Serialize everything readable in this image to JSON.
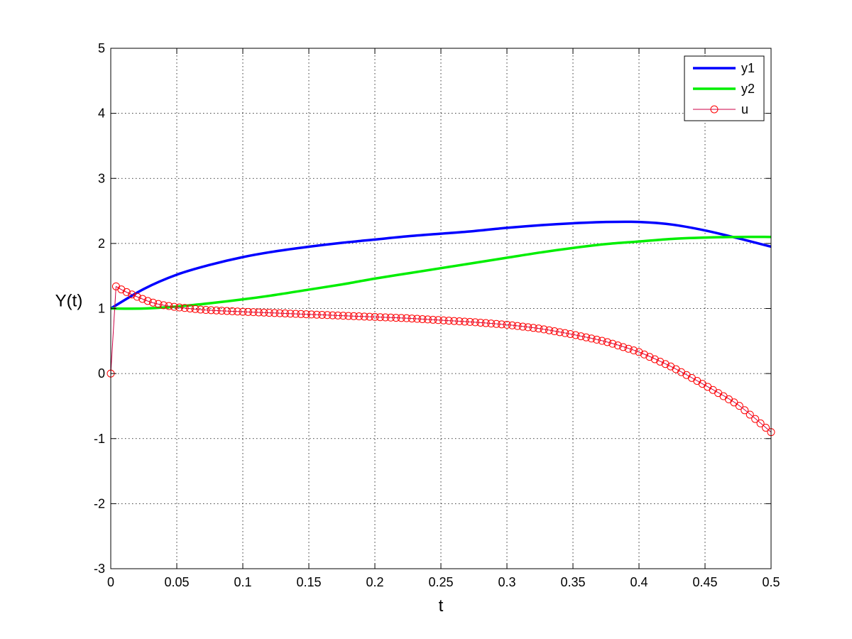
{
  "chart_data": {
    "type": "line",
    "title": "",
    "xlabel": "t",
    "ylabel": "Y(t)",
    "xlim": [
      0,
      0.5
    ],
    "ylim": [
      -3,
      5
    ],
    "xticks": [
      0,
      0.05,
      0.1,
      0.15,
      0.2,
      0.25,
      0.3,
      0.35,
      0.4,
      0.45,
      0.5
    ],
    "xtick_labels": [
      "0",
      "0.05",
      "0.1",
      "0.15",
      "0.2",
      "0.25",
      "0.3",
      "0.35",
      "0.4",
      "0.45",
      "0.5"
    ],
    "yticks": [
      -3,
      -2,
      -1,
      0,
      1,
      2,
      3,
      4,
      5
    ],
    "ytick_labels": [
      "-3",
      "-2",
      "-1",
      "0",
      "1",
      "2",
      "3",
      "4",
      "5"
    ],
    "grid": true,
    "legend_position": "top-right",
    "series": [
      {
        "name": "y1",
        "color": "#0000ff",
        "marker": "none",
        "x": [
          0,
          0.025,
          0.05,
          0.075,
          0.1,
          0.125,
          0.15,
          0.175,
          0.2,
          0.225,
          0.25,
          0.275,
          0.3,
          0.325,
          0.35,
          0.375,
          0.4,
          0.425,
          0.45,
          0.475,
          0.5
        ],
        "y": [
          1.0,
          1.3,
          1.52,
          1.67,
          1.79,
          1.88,
          1.95,
          2.01,
          2.06,
          2.11,
          2.15,
          2.19,
          2.24,
          2.28,
          2.31,
          2.33,
          2.33,
          2.29,
          2.2,
          2.08,
          1.95
        ]
      },
      {
        "name": "y2",
        "color": "#00ee00",
        "marker": "none",
        "x": [
          0,
          0.025,
          0.05,
          0.075,
          0.1,
          0.125,
          0.15,
          0.175,
          0.2,
          0.225,
          0.25,
          0.275,
          0.3,
          0.325,
          0.35,
          0.375,
          0.4,
          0.425,
          0.45,
          0.475,
          0.5
        ],
        "y": [
          1.0,
          1.0,
          1.03,
          1.08,
          1.14,
          1.21,
          1.29,
          1.37,
          1.46,
          1.54,
          1.62,
          1.7,
          1.78,
          1.86,
          1.93,
          1.99,
          2.03,
          2.07,
          2.09,
          2.1,
          2.1
        ]
      },
      {
        "name": "u",
        "color": "#ff0000",
        "line_color": "#cc0044",
        "marker": "circle",
        "x": [
          0,
          0.004,
          0.01,
          0.02,
          0.03,
          0.04,
          0.05,
          0.07,
          0.1,
          0.125,
          0.15,
          0.175,
          0.2,
          0.225,
          0.25,
          0.275,
          0.3,
          0.325,
          0.35,
          0.375,
          0.4,
          0.425,
          0.45,
          0.475,
          0.5
        ],
        "y": [
          0.0,
          1.34,
          1.27,
          1.18,
          1.1,
          1.05,
          1.02,
          0.98,
          0.95,
          0.93,
          0.91,
          0.89,
          0.87,
          0.85,
          0.82,
          0.79,
          0.75,
          0.69,
          0.6,
          0.49,
          0.33,
          0.1,
          -0.18,
          -0.48,
          -0.9
        ]
      }
    ]
  }
}
